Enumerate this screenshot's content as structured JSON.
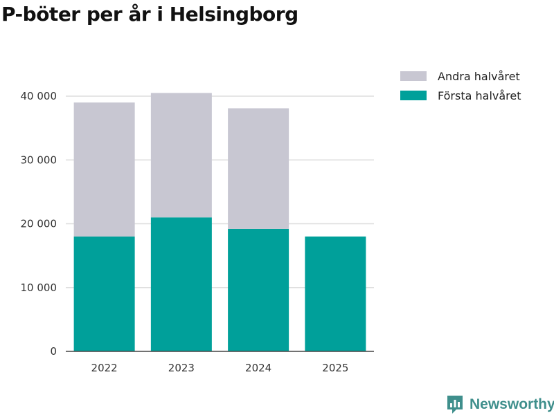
{
  "colors": {
    "first_half": "#00a09a",
    "second_half": "#c8c7d2",
    "grid": "#dddddd",
    "axis": "#444444",
    "brand": "#3f8f8c"
  },
  "brand": {
    "name": "Newsworthy",
    "icon": "bar-chart-logo-icon"
  },
  "legend": {
    "second_half": "Andra halvåret",
    "first_half": "Första halvåret"
  },
  "chart_data": {
    "type": "bar",
    "stacked": true,
    "title": "P-böter per år i Helsingborg",
    "xlabel": "",
    "ylabel": "",
    "categories": [
      "2022",
      "2023",
      "2024",
      "2025"
    ],
    "series": [
      {
        "name": "Första halvåret",
        "values": [
          18000,
          21000,
          19200,
          18000
        ]
      },
      {
        "name": "Andra halvåret",
        "values": [
          21000,
          19500,
          18900,
          null
        ]
      }
    ],
    "ylim": [
      0,
      40000
    ],
    "yticks": [
      0,
      10000,
      20000,
      30000,
      40000
    ],
    "ytick_labels": [
      "0",
      "10 000",
      "20 000",
      "30 000",
      "40 000"
    ],
    "grid": true,
    "legend_position": "top-right"
  }
}
